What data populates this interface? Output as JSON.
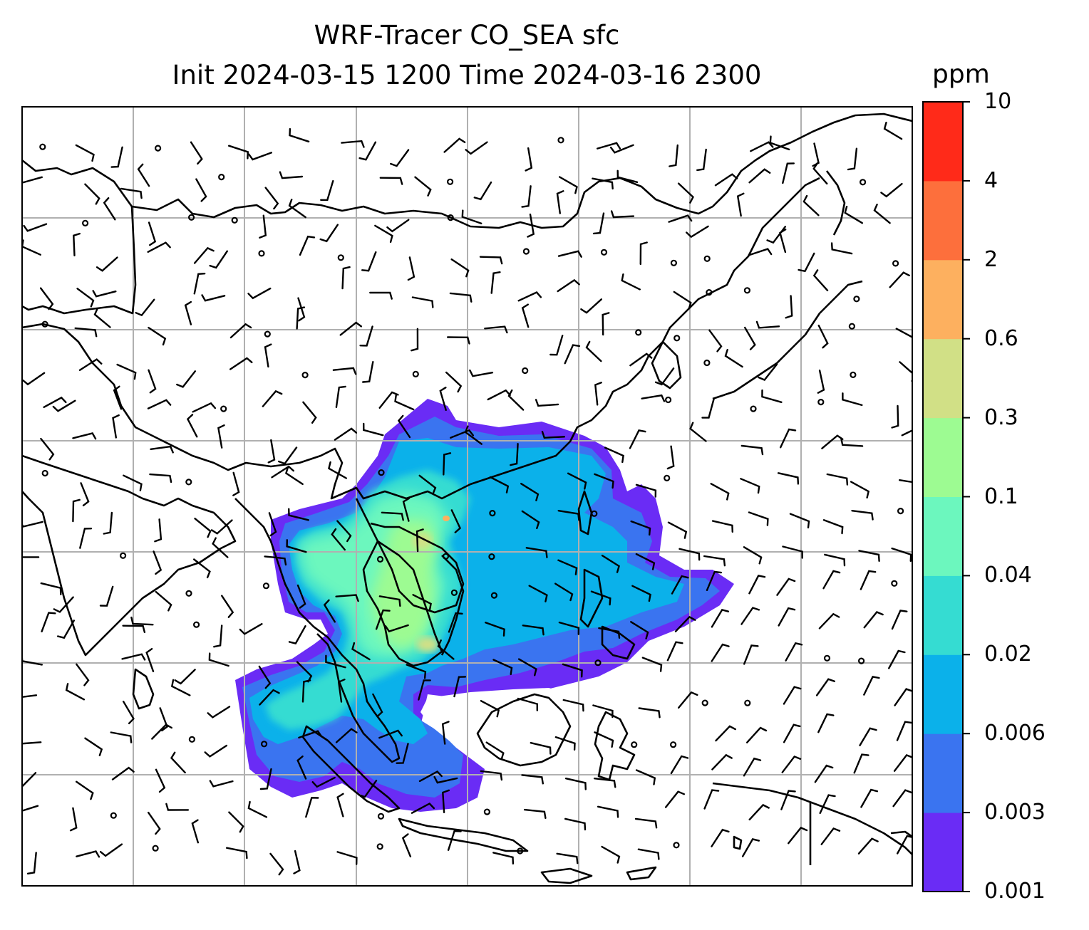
{
  "title": {
    "line1": "WRF-Tracer CO_SEA sfc",
    "line2": "Init 2024-03-15 1200 Time 2024-03-16 2300"
  },
  "colorbar": {
    "unit": "ppm",
    "levels": [
      "0.001",
      "0.003",
      "0.006",
      "0.02",
      "0.04",
      "0.1",
      "0.3",
      "0.6",
      "2",
      "4",
      "10"
    ],
    "colors": [
      "#6a2cf5",
      "#3a74f0",
      "#0bb1ea",
      "#35dcd2",
      "#6cf7be",
      "#9dfb92",
      "#d1e086",
      "#fdb05f",
      "#fd6f3c",
      "#ff2a19"
    ]
  },
  "map": {
    "gridlines": true,
    "wind_barbs": true
  }
}
